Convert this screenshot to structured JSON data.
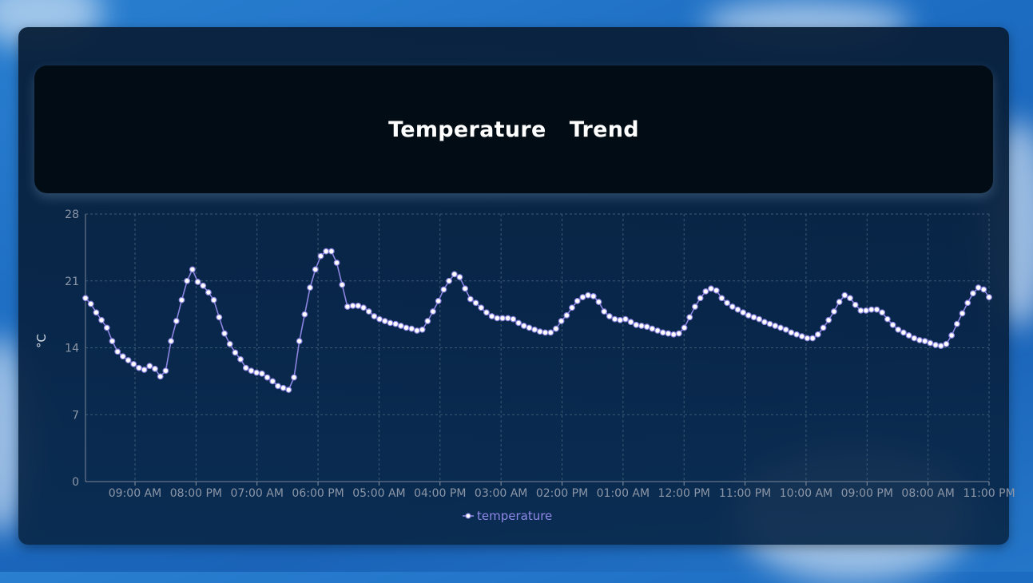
{
  "header": {
    "title": "Temperature   Trend"
  },
  "chart_data": {
    "type": "line",
    "title": "Temperature   Trend",
    "ylabel": "°C",
    "xlabel": "",
    "ylim": [
      0,
      28
    ],
    "yticks": [
      0,
      7,
      14,
      21,
      28
    ],
    "xtick_labels": [
      "09:00 AM",
      "08:00 PM",
      "07:00 AM",
      "06:00 PM",
      "05:00 AM",
      "04:00 PM",
      "03:00 AM",
      "02:00 PM",
      "01:00 AM",
      "12:00 PM",
      "11:00 PM",
      "10:00 AM",
      "09:00 PM",
      "08:00 AM",
      "11:00 PM"
    ],
    "grid": true,
    "legend": "bottom-center",
    "colors": {
      "line": "#8b84e0",
      "marker_fill": "#ffffff",
      "legend_text": "#8f88e6",
      "axis_text": "#8c96a6",
      "grid": "#3d5a74"
    },
    "series": [
      {
        "name": "temperature",
        "values": [
          19.2,
          18.6,
          17.7,
          16.9,
          16.1,
          14.7,
          13.6,
          13.1,
          12.7,
          12.3,
          11.9,
          11.7,
          12.1,
          11.8,
          11.0,
          11.6,
          14.7,
          16.8,
          19.0,
          21.0,
          22.2,
          20.9,
          20.5,
          19.8,
          19.0,
          17.2,
          15.5,
          14.4,
          13.5,
          12.8,
          11.9,
          11.6,
          11.4,
          11.3,
          10.9,
          10.5,
          10.0,
          9.8,
          9.6,
          10.9,
          14.7,
          17.5,
          20.3,
          22.2,
          23.6,
          24.1,
          24.1,
          22.9,
          20.6,
          18.3,
          18.4,
          18.4,
          18.2,
          17.8,
          17.3,
          17.0,
          16.8,
          16.6,
          16.5,
          16.3,
          16.1,
          16.0,
          15.8,
          15.9,
          16.8,
          17.8,
          18.9,
          20.1,
          21.0,
          21.7,
          21.4,
          20.2,
          19.1,
          18.7,
          18.2,
          17.7,
          17.3,
          17.1,
          17.1,
          17.1,
          17.0,
          16.6,
          16.3,
          16.1,
          15.9,
          15.7,
          15.6,
          15.6,
          16.0,
          16.8,
          17.4,
          18.2,
          18.9,
          19.3,
          19.5,
          19.4,
          18.8,
          17.8,
          17.3,
          17.0,
          16.9,
          17.0,
          16.7,
          16.4,
          16.3,
          16.2,
          16.0,
          15.8,
          15.6,
          15.5,
          15.4,
          15.5,
          16.1,
          17.2,
          18.3,
          19.2,
          19.9,
          20.2,
          20.0,
          19.2,
          18.7,
          18.3,
          18.0,
          17.7,
          17.4,
          17.2,
          17.0,
          16.7,
          16.5,
          16.3,
          16.1,
          15.9,
          15.6,
          15.4,
          15.2,
          15.0,
          15.0,
          15.4,
          16.1,
          16.9,
          17.8,
          18.8,
          19.5,
          19.2,
          18.5,
          17.9,
          17.9,
          18.0,
          18.0,
          17.7,
          17.0,
          16.4,
          15.9,
          15.6,
          15.3,
          15.0,
          14.8,
          14.7,
          14.5,
          14.3,
          14.2,
          14.4,
          15.3,
          16.5,
          17.6,
          18.7,
          19.7,
          20.3,
          20.1,
          19.3
        ]
      }
    ]
  }
}
